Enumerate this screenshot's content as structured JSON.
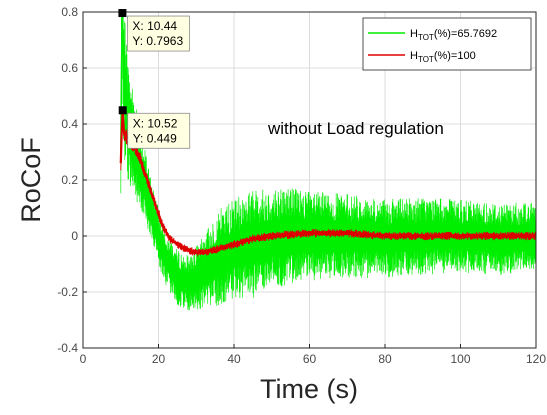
{
  "chart_data": {
    "type": "line",
    "xlabel": "Time (s)",
    "ylabel": "RoCoF",
    "xlim": [
      0,
      120
    ],
    "ylim": [
      -0.4,
      0.8
    ],
    "xticks": [
      "0",
      "20",
      "40",
      "60",
      "80",
      "100",
      "120"
    ],
    "yticks": [
      "-0.4",
      "-0.2",
      "0",
      "0.2",
      "0.4",
      "0.6",
      "0.8"
    ],
    "grid": true,
    "legend_position": "top-right",
    "annotation": "without Load regulation",
    "series": [
      {
        "label_main": "H",
        "label_sub": "TOT",
        "label_rest": "(%)=65.7692",
        "color": "#00ee00",
        "x": [
          10,
          10.2,
          10.44,
          10.7,
          11,
          11.5,
          12,
          13,
          14,
          15,
          17,
          19,
          21,
          23,
          25,
          28,
          31,
          34,
          37,
          40,
          45,
          50,
          55,
          60,
          70,
          80,
          90,
          100,
          110,
          120
        ],
        "y": [
          0.3,
          0.6,
          0.7963,
          0.65,
          0.55,
          0.45,
          0.4,
          0.35,
          0.3,
          0.25,
          0.15,
          0.05,
          -0.05,
          -0.1,
          -0.15,
          -0.17,
          -0.14,
          -0.1,
          -0.07,
          -0.05,
          -0.03,
          -0.01,
          0.0,
          0.0,
          0.0,
          -0.01,
          0.0,
          0.0,
          -0.01,
          0.0
        ],
        "band": [
          0.2,
          0.25,
          0.3,
          0.3,
          0.28,
          0.25,
          0.22,
          0.2,
          0.18,
          0.15,
          0.12,
          0.1,
          0.1,
          0.1,
          0.1,
          0.1,
          0.12,
          0.15,
          0.18,
          0.18,
          0.2,
          0.18,
          0.18,
          0.16,
          0.15,
          0.14,
          0.14,
          0.13,
          0.13,
          0.12
        ]
      },
      {
        "label_main": "H",
        "label_sub": "TOT",
        "label_rest": "(%)=100",
        "color": "#dd0000",
        "x": [
          10,
          10.2,
          10.52,
          10.8,
          11,
          12,
          13,
          14,
          15,
          17,
          19,
          21,
          23,
          25,
          27,
          29,
          31,
          33,
          36,
          40,
          45,
          50,
          55,
          60,
          70,
          80,
          90,
          100,
          110,
          120
        ],
        "y": [
          0.26,
          0.35,
          0.449,
          0.38,
          0.36,
          0.35,
          0.33,
          0.31,
          0.28,
          0.2,
          0.12,
          0.04,
          -0.01,
          -0.03,
          -0.045,
          -0.055,
          -0.06,
          -0.055,
          -0.045,
          -0.03,
          -0.01,
          0.0,
          0.005,
          0.01,
          0.01,
          0.0,
          0.0,
          0.0,
          0.0,
          0.0
        ],
        "band": [
          0.03,
          0.04,
          0.04,
          0.04,
          0.03,
          0.03,
          0.03,
          0.025,
          0.025,
          0.02,
          0.02,
          0.02,
          0.015,
          0.015,
          0.015,
          0.015,
          0.015,
          0.015,
          0.015,
          0.015,
          0.015,
          0.015,
          0.015,
          0.015,
          0.015,
          0.015,
          0.015,
          0.015,
          0.015,
          0.015
        ]
      }
    ],
    "datatips": [
      {
        "x": 10.44,
        "y": 0.7963,
        "x_text": "X: 10.44",
        "y_text": "Y: 0.7963"
      },
      {
        "x": 10.52,
        "y": 0.449,
        "x_text": "X: 10.52",
        "y_text": "Y: 0.449"
      }
    ]
  }
}
